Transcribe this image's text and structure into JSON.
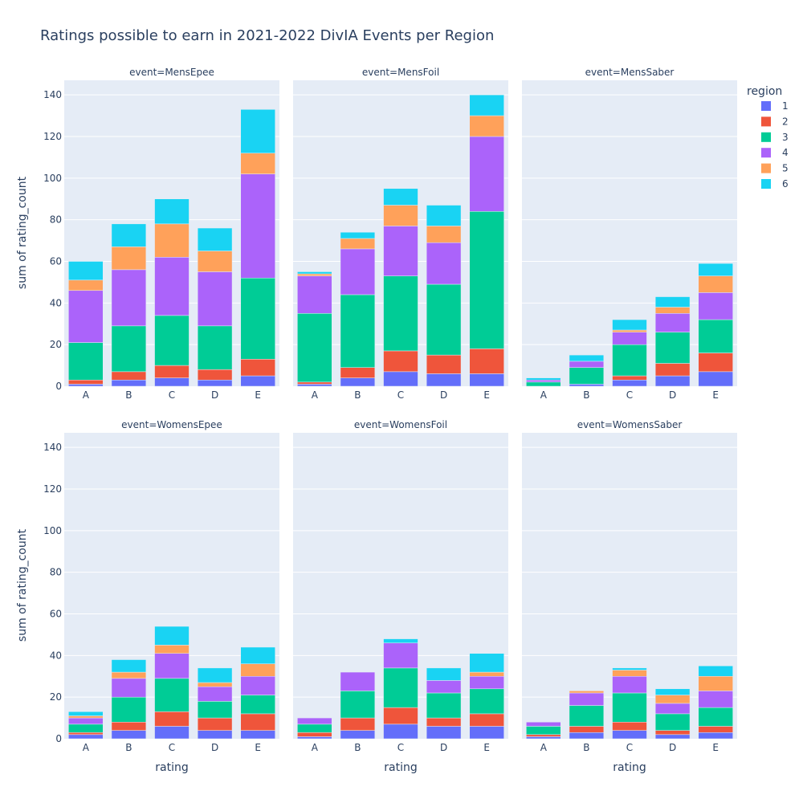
{
  "colors": {
    "panel_bg": "#e5ecf6",
    "grid": "#ffffff",
    "text": "#2a3f5f"
  },
  "chart_data": {
    "type": "bar",
    "barmode": "stack",
    "title": "Ratings possible to earn in 2021-2022 DivIA Events per Region",
    "xlabel": "rating",
    "ylabel": "sum of rating_count",
    "ylim": [
      0,
      147
    ],
    "yticks": [
      0,
      20,
      40,
      60,
      80,
      100,
      120,
      140
    ],
    "categories": [
      "A",
      "B",
      "C",
      "D",
      "E"
    ],
    "legend": {
      "title": "region",
      "position": "top-right",
      "entries": [
        {
          "name": "1",
          "color": "#636efa"
        },
        {
          "name": "2",
          "color": "#EF553B"
        },
        {
          "name": "3",
          "color": "#00cc96"
        },
        {
          "name": "4",
          "color": "#ab63fa"
        },
        {
          "name": "5",
          "color": "#FFA15A"
        },
        {
          "name": "6",
          "color": "#19d3f3"
        }
      ]
    },
    "facets": [
      {
        "label": "event=MensEpee",
        "series": [
          {
            "name": "1",
            "values": [
              1,
              3,
              4,
              3,
              5
            ]
          },
          {
            "name": "2",
            "values": [
              2,
              4,
              6,
              5,
              8
            ]
          },
          {
            "name": "3",
            "values": [
              18,
              22,
              24,
              21,
              39
            ]
          },
          {
            "name": "4",
            "values": [
              25,
              27,
              28,
              26,
              50
            ]
          },
          {
            "name": "5",
            "values": [
              5,
              11,
              16,
              10,
              10
            ]
          },
          {
            "name": "6",
            "values": [
              9,
              11,
              12,
              11,
              21
            ]
          }
        ]
      },
      {
        "label": "event=MensFoil",
        "series": [
          {
            "name": "1",
            "values": [
              1,
              4,
              7,
              6,
              6
            ]
          },
          {
            "name": "2",
            "values": [
              1,
              5,
              10,
              9,
              12
            ]
          },
          {
            "name": "3",
            "values": [
              33,
              35,
              36,
              34,
              66
            ]
          },
          {
            "name": "4",
            "values": [
              18,
              22,
              24,
              20,
              36
            ]
          },
          {
            "name": "5",
            "values": [
              1,
              5,
              10,
              8,
              10
            ]
          },
          {
            "name": "6",
            "values": [
              1,
              3,
              8,
              10,
              10
            ]
          }
        ]
      },
      {
        "label": "event=MensSaber",
        "series": [
          {
            "name": "1",
            "values": [
              0,
              1,
              3,
              5,
              7
            ]
          },
          {
            "name": "2",
            "values": [
              0,
              0,
              2,
              6,
              9
            ]
          },
          {
            "name": "3",
            "values": [
              2,
              8,
              15,
              15,
              16
            ]
          },
          {
            "name": "4",
            "values": [
              1,
              3,
              6,
              9,
              13
            ]
          },
          {
            "name": "5",
            "values": [
              0,
              0,
              1,
              3,
              8
            ]
          },
          {
            "name": "6",
            "values": [
              1,
              3,
              5,
              5,
              6
            ]
          }
        ]
      },
      {
        "label": "event=WomensEpee",
        "series": [
          {
            "name": "1",
            "values": [
              2,
              4,
              6,
              4,
              4
            ]
          },
          {
            "name": "2",
            "values": [
              1,
              4,
              7,
              6,
              8
            ]
          },
          {
            "name": "3",
            "values": [
              4,
              12,
              16,
              8,
              9
            ]
          },
          {
            "name": "4",
            "values": [
              3,
              9,
              12,
              7,
              9
            ]
          },
          {
            "name": "5",
            "values": [
              1,
              3,
              4,
              2,
              6
            ]
          },
          {
            "name": "6",
            "values": [
              2,
              6,
              9,
              7,
              8
            ]
          }
        ]
      },
      {
        "label": "event=WomensFoil",
        "series": [
          {
            "name": "1",
            "values": [
              1,
              4,
              7,
              6,
              6
            ]
          },
          {
            "name": "2",
            "values": [
              2,
              6,
              8,
              4,
              6
            ]
          },
          {
            "name": "3",
            "values": [
              4,
              13,
              19,
              12,
              12
            ]
          },
          {
            "name": "4",
            "values": [
              3,
              9,
              12,
              6,
              6
            ]
          },
          {
            "name": "5",
            "values": [
              0,
              0,
              0,
              0,
              2
            ]
          },
          {
            "name": "6",
            "values": [
              0,
              0,
              2,
              6,
              9
            ]
          }
        ]
      },
      {
        "label": "event=WomensSaber",
        "series": [
          {
            "name": "1",
            "values": [
              1,
              3,
              4,
              2,
              3
            ]
          },
          {
            "name": "2",
            "values": [
              1,
              3,
              4,
              2,
              3
            ]
          },
          {
            "name": "3",
            "values": [
              4,
              10,
              14,
              8,
              9
            ]
          },
          {
            "name": "4",
            "values": [
              2,
              6,
              8,
              5,
              8
            ]
          },
          {
            "name": "5",
            "values": [
              0,
              1,
              3,
              4,
              7
            ]
          },
          {
            "name": "6",
            "values": [
              0,
              0,
              1,
              3,
              5
            ]
          }
        ]
      }
    ]
  }
}
